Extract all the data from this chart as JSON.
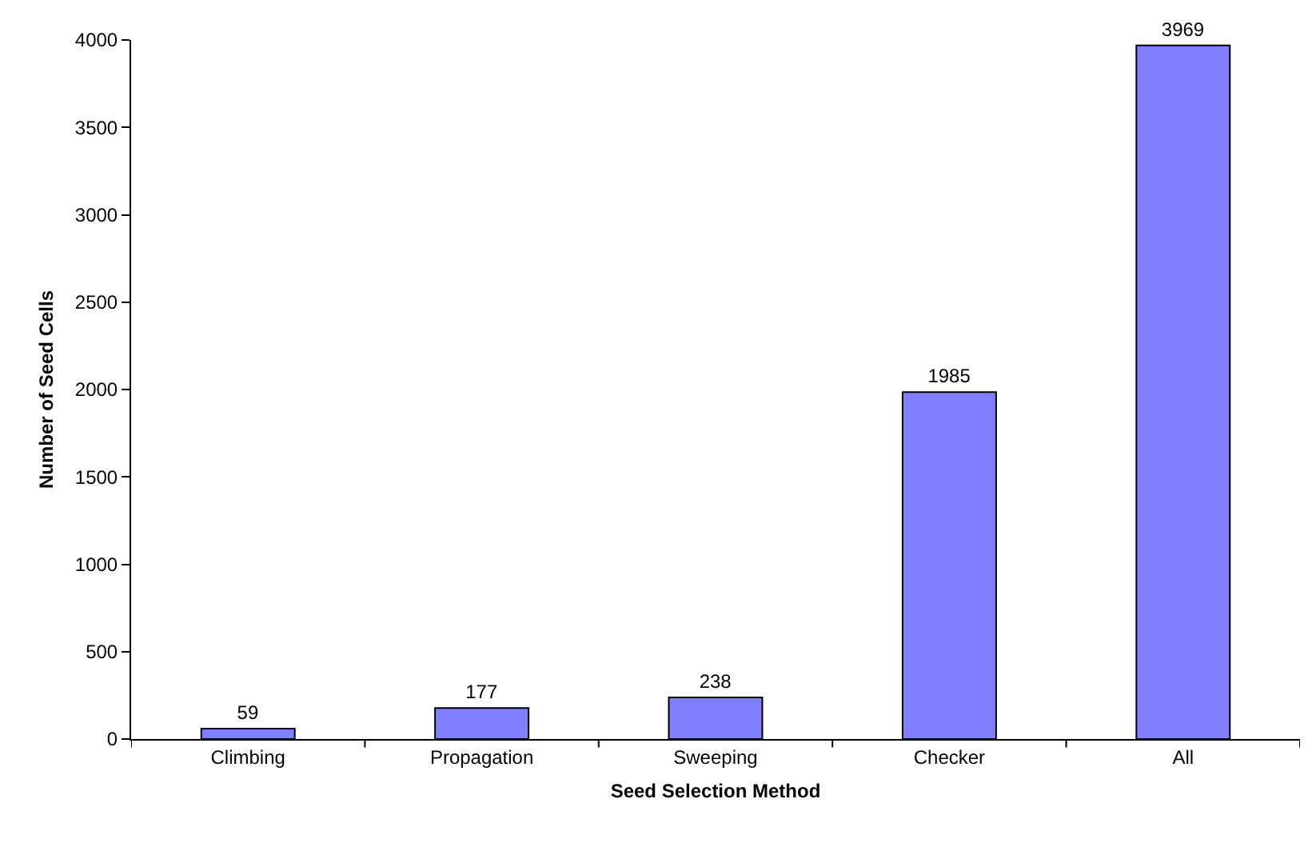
{
  "chart_data": {
    "type": "bar",
    "xlabel": "Seed Selection Method",
    "ylabel": "Number of Seed Cells",
    "categories": [
      "Climbing",
      "Propagation",
      "Sweeping",
      "Checker",
      "All"
    ],
    "values": [
      59,
      177,
      238,
      1985,
      3969
    ],
    "color": "#8080ff",
    "ylim": [
      0,
      4000
    ],
    "yticks": [
      0,
      500,
      1000,
      1500,
      2000,
      2500,
      3000,
      3500,
      4000
    ],
    "data_labels": true
  }
}
